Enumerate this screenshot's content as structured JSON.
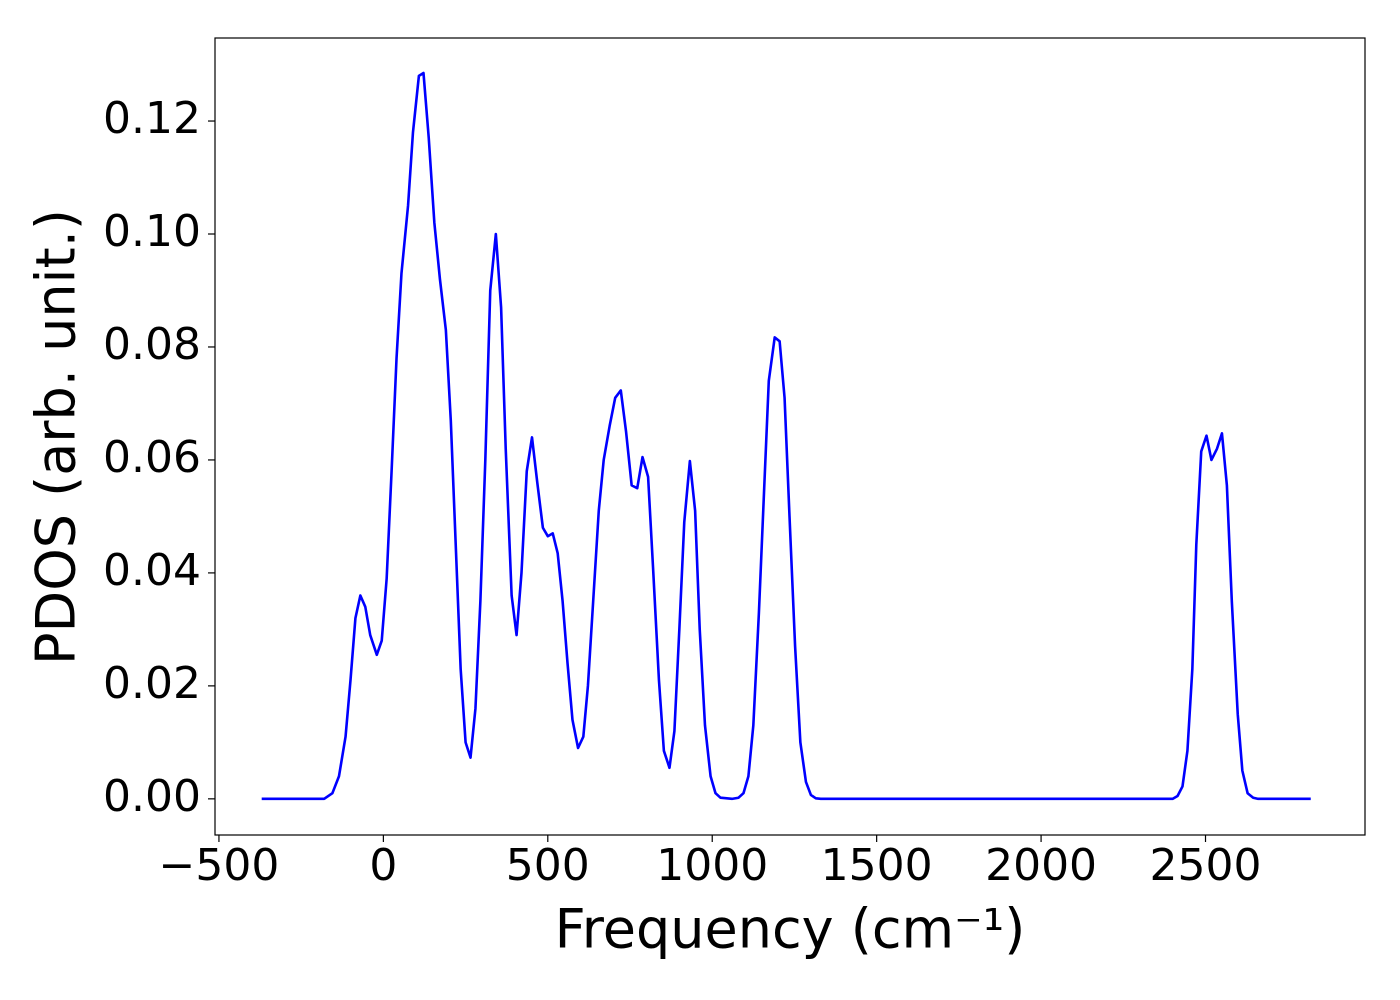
{
  "chart_data": {
    "type": "line",
    "xlabel": "Frequency (cm⁻¹)",
    "ylabel": "PDOS (arb. unit.)",
    "xlim": [
      -512,
      2985
    ],
    "ylim": [
      -0.0064,
      0.1347
    ],
    "xticks": [
      {
        "value": -500,
        "label": "−500"
      },
      0,
      500,
      1000,
      1500,
      2000,
      2500
    ],
    "yticks": [
      {
        "value": 0,
        "label": "0.00"
      },
      {
        "value": 0.02,
        "label": "0.02"
      },
      {
        "value": 0.04,
        "label": "0.04"
      },
      {
        "value": 0.06,
        "label": "0.06"
      },
      {
        "value": 0.08,
        "label": "0.08"
      },
      {
        "value": 0.1,
        "label": "0.10"
      },
      {
        "value": 0.12,
        "label": "0.12"
      }
    ],
    "grid": false,
    "color": "#0000ff",
    "x": [
      -370,
      -180,
      -155,
      -135,
      -115,
      -100,
      -85,
      -70,
      -55,
      -40,
      -20,
      -5,
      10,
      25,
      40,
      55,
      75,
      90,
      108,
      122,
      138,
      155,
      172,
      190,
      205,
      220,
      235,
      250,
      265,
      280,
      295,
      310,
      325,
      342,
      358,
      372,
      390,
      405,
      420,
      436,
      452,
      468,
      485,
      500,
      515,
      530,
      545,
      560,
      575,
      592,
      608,
      622,
      638,
      655,
      670,
      688,
      705,
      722,
      738,
      755,
      772,
      788,
      805,
      820,
      838,
      853,
      870,
      885,
      900,
      915,
      932,
      948,
      962,
      978,
      995,
      1010,
      1025,
      1060,
      1080,
      1095,
      1110,
      1125,
      1142,
      1158,
      1172,
      1190,
      1205,
      1220,
      1235,
      1252,
      1268,
      1285,
      1300,
      1315,
      1330,
      2400,
      2415,
      2430,
      2445,
      2460,
      2472,
      2487,
      2503,
      2518,
      2535,
      2550,
      2565,
      2580,
      2598,
      2612,
      2628,
      2645,
      2660,
      2820
    ],
    "values": [
      0,
      0,
      0.001,
      0.004,
      0.011,
      0.021,
      0.032,
      0.036,
      0.034,
      0.029,
      0.0255,
      0.028,
      0.039,
      0.058,
      0.078,
      0.093,
      0.105,
      0.118,
      0.128,
      0.1285,
      0.117,
      0.102,
      0.092,
      0.083,
      0.067,
      0.045,
      0.023,
      0.01,
      0.0073,
      0.016,
      0.035,
      0.06,
      0.09,
      0.1,
      0.087,
      0.062,
      0.036,
      0.029,
      0.04,
      0.058,
      0.064,
      0.056,
      0.048,
      0.0465,
      0.047,
      0.0435,
      0.035,
      0.024,
      0.014,
      0.009,
      0.011,
      0.02,
      0.035,
      0.051,
      0.06,
      0.066,
      0.071,
      0.0723,
      0.065,
      0.0555,
      0.055,
      0.0605,
      0.057,
      0.041,
      0.021,
      0.0085,
      0.0055,
      0.012,
      0.03,
      0.049,
      0.0598,
      0.051,
      0.03,
      0.013,
      0.004,
      0.001,
      0.0002,
      0,
      0.0002,
      0.001,
      0.004,
      0.013,
      0.033,
      0.055,
      0.074,
      0.0817,
      0.081,
      0.071,
      0.05,
      0.027,
      0.01,
      0.003,
      0.0007,
      0.0001,
      0,
      0,
      0.0005,
      0.0022,
      0.0085,
      0.023,
      0.045,
      0.0615,
      0.0643,
      0.06,
      0.062,
      0.0647,
      0.0555,
      0.035,
      0.015,
      0.005,
      0.001,
      0.0002,
      0,
      0
    ]
  }
}
